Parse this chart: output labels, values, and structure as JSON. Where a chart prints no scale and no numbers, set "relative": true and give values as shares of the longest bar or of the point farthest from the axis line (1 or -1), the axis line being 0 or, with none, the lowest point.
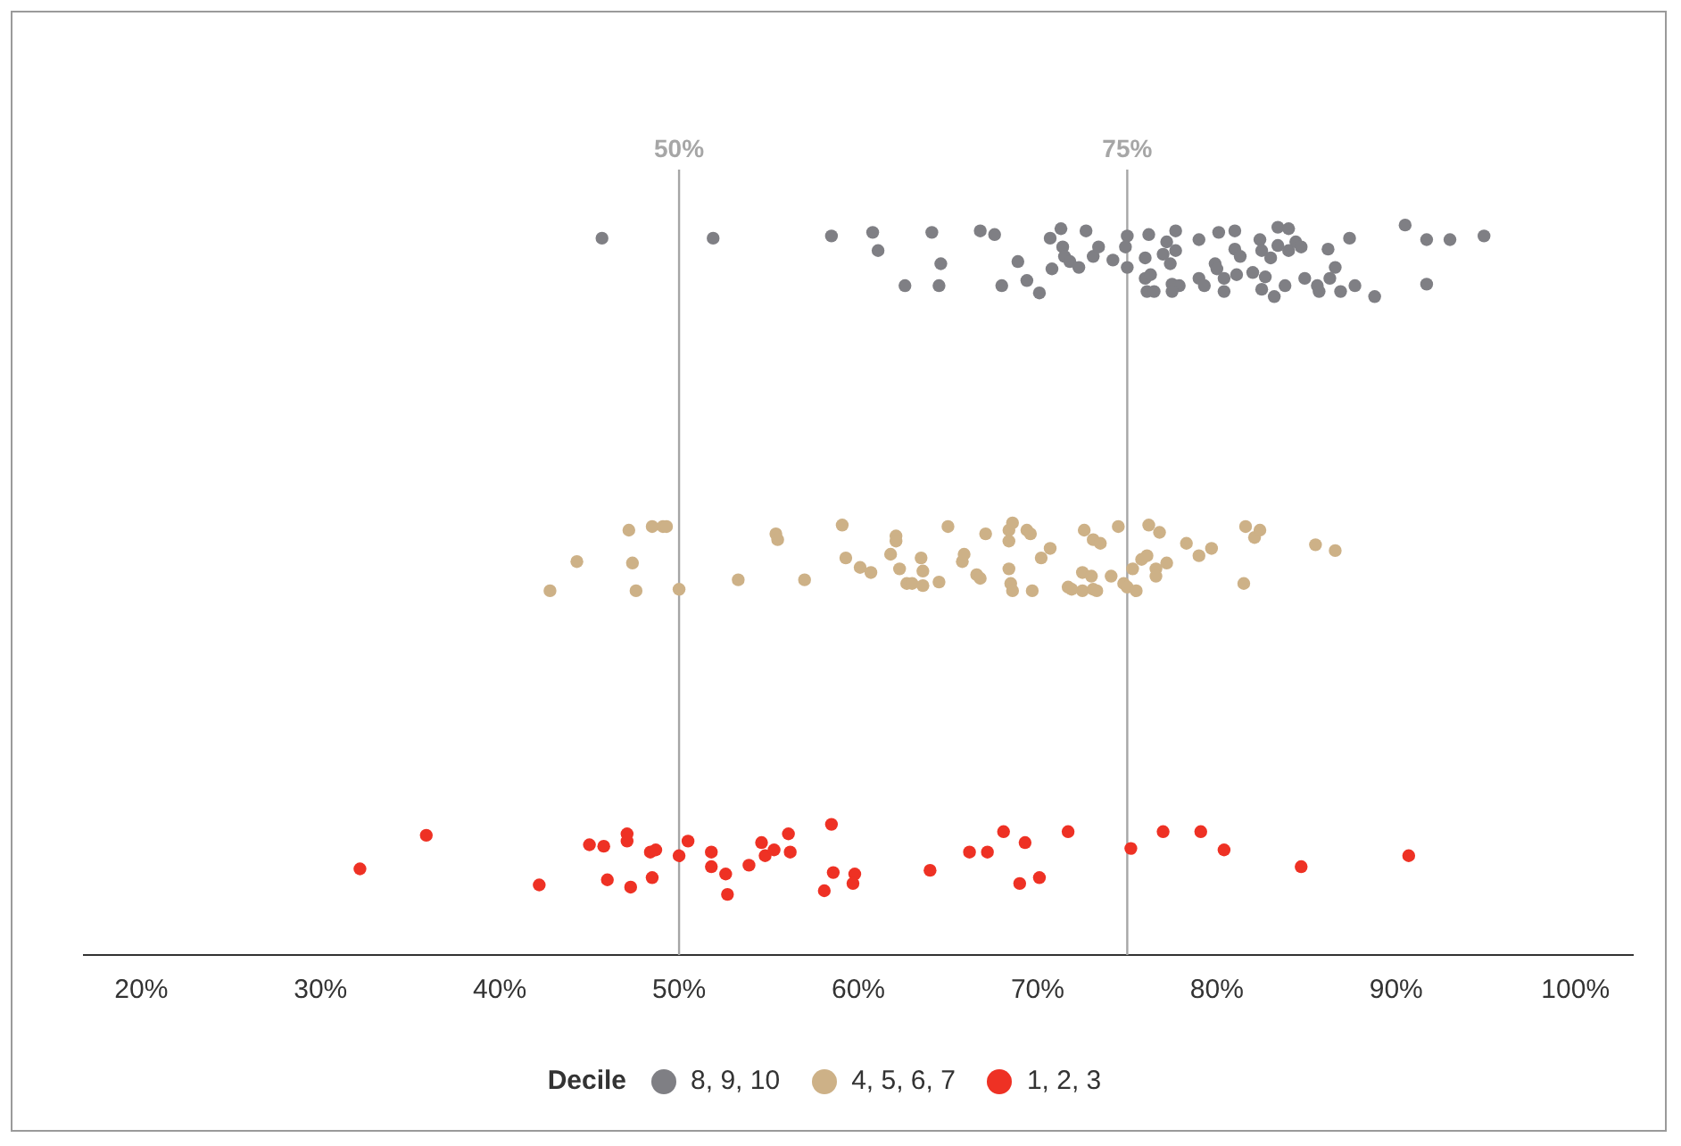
{
  "chart_data": {
    "type": "scatter",
    "legend_title": "Decile",
    "legend": "bottom",
    "grid": false,
    "relative": true,
    "marker": "circle",
    "tick_labels": "x",
    "xlim": [
      16.8,
      103.2
    ],
    "xticks": [
      {
        "value": 20,
        "label": "20%"
      },
      {
        "value": 30,
        "label": "30%"
      },
      {
        "value": 40,
        "label": "40%"
      },
      {
        "value": 50,
        "label": "50%"
      },
      {
        "value": 60,
        "label": "60%"
      },
      {
        "value": 70,
        "label": "70%"
      },
      {
        "value": 80,
        "label": "80%"
      },
      {
        "value": 90,
        "label": "90%"
      },
      {
        "value": 100,
        "label": "100%"
      }
    ],
    "ref_lines": [
      {
        "axis": "x",
        "value": 50,
        "label": "50%",
        "color": "#a6a6a6"
      },
      {
        "axis": "x",
        "value": 75,
        "label": "75%",
        "color": "#a6a6a6"
      }
    ],
    "series": [
      {
        "name": "8, 9, 10",
        "color": "#7f7f84",
        "x": [
          45.7,
          51.9,
          58.5,
          60.8,
          61.1,
          64.1,
          64.6,
          62.6,
          64.5,
          66.8,
          67.6,
          68.0,
          68.9,
          69.4,
          70.1,
          70.7,
          71.3,
          72.7,
          71.4,
          71.5,
          71.8,
          72.3,
          73.1,
          73.4,
          70.8,
          74.2,
          75.0,
          74.9,
          75.0,
          76.2,
          76.0,
          77.2,
          77.0,
          77.4,
          77.7,
          77.7,
          76.0,
          76.3,
          76.1,
          76.5,
          77.5,
          77.9,
          77.5,
          79.0,
          79.0,
          79.3,
          80.1,
          79.9,
          80.0,
          80.4,
          80.4,
          81.0,
          81.0,
          81.3,
          81.1,
          82.0,
          82.4,
          82.5,
          82.7,
          82.5,
          83.0,
          83.4,
          84.0,
          83.4,
          84.0,
          84.4,
          84.7,
          83.8,
          83.2,
          84.9,
          85.6,
          85.7,
          86.2,
          86.6,
          86.3,
          86.9,
          87.7,
          87.4,
          88.8,
          90.5,
          91.7,
          93.0,
          94.9,
          91.7
        ],
        "values": [
          0.982,
          0.982,
          0.985,
          0.99,
          0.965,
          0.99,
          0.947,
          0.917,
          0.917,
          0.992,
          0.987,
          0.917,
          0.95,
          0.924,
          0.907,
          0.982,
          0.995,
          0.992,
          0.97,
          0.957,
          0.95,
          0.942,
          0.957,
          0.97,
          0.94,
          0.952,
          0.985,
          0.97,
          0.942,
          0.987,
          0.955,
          0.977,
          0.96,
          0.947,
          0.992,
          0.965,
          0.927,
          0.932,
          0.909,
          0.909,
          0.919,
          0.917,
          0.909,
          0.98,
          0.927,
          0.917,
          0.99,
          0.947,
          0.94,
          0.927,
          0.909,
          0.992,
          0.967,
          0.957,
          0.932,
          0.935,
          0.98,
          0.965,
          0.929,
          0.912,
          0.955,
          0.997,
          0.995,
          0.972,
          0.965,
          0.977,
          0.97,
          0.917,
          0.902,
          0.927,
          0.917,
          0.909,
          0.967,
          0.942,
          0.927,
          0.909,
          0.917,
          0.982,
          0.902,
          1,
          0.98,
          0.98,
          0.985,
          0.919
        ]
      },
      {
        "name": "4, 5, 6, 7",
        "color": "#cdb187",
        "x": [
          42.8,
          44.3,
          47.2,
          47.4,
          47.6,
          48.5,
          49.1,
          49.3,
          50.0,
          53.3,
          55.4,
          55.5,
          57.0,
          59.1,
          59.3,
          60.1,
          60.7,
          61.8,
          62.1,
          62.1,
          62.3,
          63.5,
          63.6,
          62.7,
          63.0,
          63.6,
          64.5,
          65.0,
          65.8,
          65.9,
          66.6,
          66.8,
          67.1,
          68.4,
          68.6,
          68.4,
          68.4,
          68.5,
          68.6,
          69.4,
          69.6,
          69.7,
          70.2,
          70.7,
          71.7,
          72.6,
          73.1,
          72.5,
          73.0,
          72.5,
          73.1,
          73.5,
          74.5,
          71.9,
          73.3,
          74.1,
          74.8,
          75.0,
          75.5,
          75.3,
          75.8,
          76.1,
          76.2,
          76.8,
          76.6,
          76.6,
          77.2,
          78.3,
          79.0,
          79.7,
          81.6,
          82.1,
          82.4,
          81.5,
          85.5,
          86.6
        ],
        "values": [
          0.499,
          0.539,
          0.582,
          0.537,
          0.499,
          0.587,
          0.587,
          0.587,
          0.501,
          0.514,
          0.577,
          0.569,
          0.514,
          0.589,
          0.544,
          0.531,
          0.524,
          0.549,
          0.574,
          0.567,
          0.529,
          0.544,
          0.526,
          0.509,
          0.509,
          0.506,
          0.511,
          0.587,
          0.539,
          0.549,
          0.521,
          0.516,
          0.577,
          0.582,
          0.592,
          0.567,
          0.529,
          0.509,
          0.499,
          0.582,
          0.577,
          0.499,
          0.544,
          0.557,
          0.504,
          0.582,
          0.569,
          0.524,
          0.519,
          0.499,
          0.501,
          0.564,
          0.587,
          0.501,
          0.499,
          0.519,
          0.509,
          0.504,
          0.499,
          0.529,
          0.542,
          0.547,
          0.589,
          0.579,
          0.529,
          0.519,
          0.537,
          0.564,
          0.547,
          0.557,
          0.587,
          0.572,
          0.582,
          0.509,
          0.562,
          0.554
        ]
      },
      {
        "name": "1, 2, 3",
        "color": "#ee3124",
        "x": [
          32.2,
          35.9,
          42.2,
          45.0,
          45.8,
          47.1,
          47.1,
          46.0,
          47.3,
          48.4,
          48.7,
          48.5,
          50.0,
          50.5,
          51.8,
          51.8,
          52.6,
          52.7,
          53.9,
          54.6,
          54.8,
          55.3,
          56.1,
          56.2,
          58.5,
          58.6,
          58.1,
          59.8,
          59.7,
          64.0,
          66.2,
          67.2,
          68.1,
          69.3,
          69.0,
          70.1,
          71.7,
          75.2,
          77.0,
          79.1,
          80.4,
          84.7,
          90.7
        ],
        "values": [
          0.118,
          0.164,
          0.096,
          0.151,
          0.149,
          0.166,
          0.156,
          0.103,
          0.093,
          0.141,
          0.144,
          0.106,
          0.136,
          0.156,
          0.141,
          0.121,
          0.111,
          0.083,
          0.123,
          0.154,
          0.136,
          0.144,
          0.166,
          0.141,
          0.179,
          0.113,
          0.088,
          0.111,
          0.098,
          0.116,
          0.141,
          0.141,
          0.169,
          0.154,
          0.098,
          0.106,
          0.169,
          0.146,
          0.169,
          0.169,
          0.144,
          0.121,
          0.136
        ]
      }
    ]
  }
}
